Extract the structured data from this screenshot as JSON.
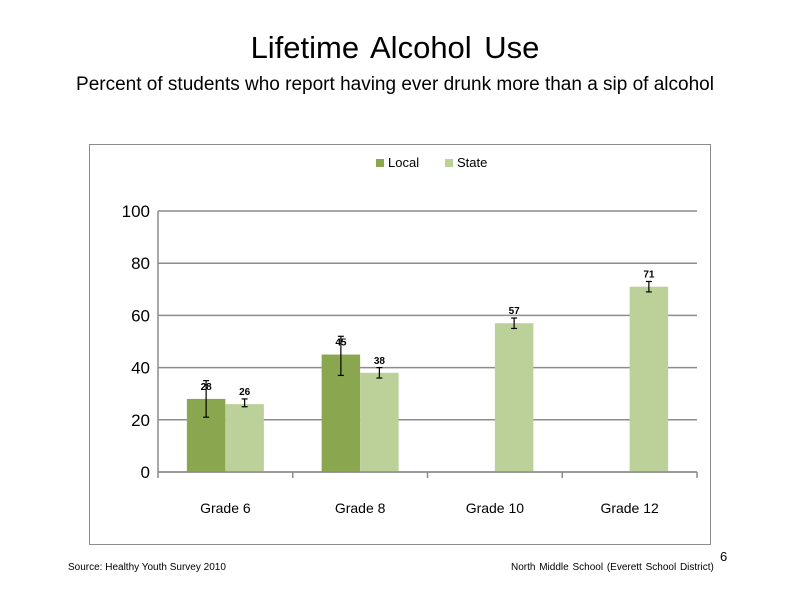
{
  "slide": {
    "title": "Lifetime  Alcohol  Use",
    "subtitle": "Percent of students who report having ever drunk more than a sip of alcohol",
    "source": "Source: Healthy Youth Survey 2010",
    "school": "North Middle School (Everett School District)",
    "page_number": "6"
  },
  "chart_data": {
    "type": "bar",
    "categories": [
      "Grade 6",
      "Grade 8",
      "Grade 10",
      "Grade 12"
    ],
    "series": [
      {
        "name": "Local",
        "color": "#8aa64f",
        "values": [
          28,
          45,
          null,
          null
        ],
        "error_low": [
          21,
          37,
          null,
          null
        ],
        "error_high": [
          35,
          52,
          null,
          null
        ]
      },
      {
        "name": "State",
        "color": "#bcd19a",
        "values": [
          26,
          38,
          57,
          71
        ],
        "error_low": [
          25,
          36,
          55,
          69
        ],
        "error_high": [
          28,
          40,
          59,
          73
        ]
      }
    ],
    "ylim": [
      0,
      100
    ],
    "yticks": [
      0,
      20,
      40,
      60,
      80,
      100
    ],
    "grid": true,
    "legend_position": "top"
  }
}
